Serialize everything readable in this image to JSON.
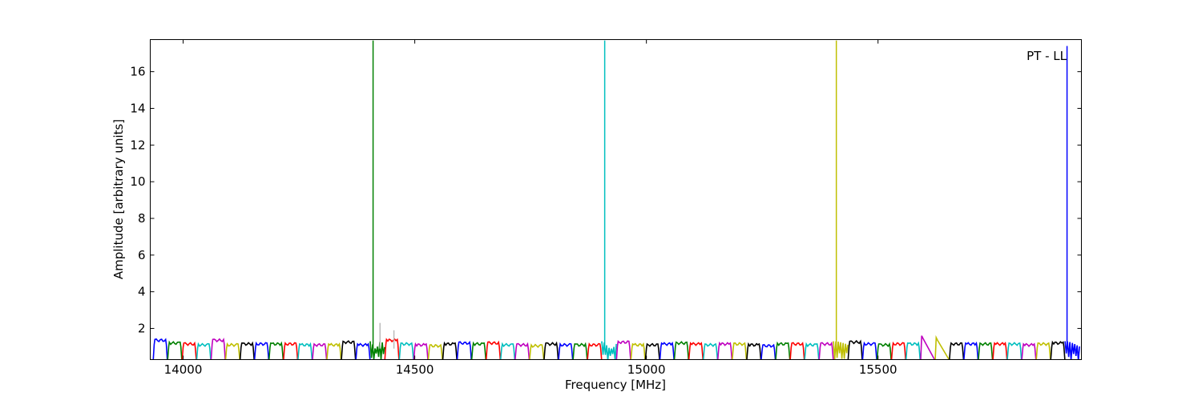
{
  "chart_data": {
    "type": "line",
    "title": "",
    "annotation": "PT - LL",
    "xlabel": "Frequency [MHz]",
    "ylabel": "Amplitude [arbitrary units]",
    "xlim": [
      13929,
      15939
    ],
    "ylim": [
      0.3,
      17.75
    ],
    "xticks": [
      14000,
      14500,
      15000,
      15500
    ],
    "yticks": [
      2,
      4,
      6,
      8,
      10,
      12,
      14,
      16
    ],
    "grid": false,
    "legend": "none",
    "channel_colors": [
      "#0000ff",
      "#008000",
      "#ff0000",
      "#00bfbf",
      "#bf00bf",
      "#bfbf00",
      "#000000"
    ],
    "channels": {
      "first_start_mhz": 13935,
      "width_mhz": 31.25,
      "levels": [
        1.4,
        1.25,
        1.2,
        1.15,
        1.4,
        1.15,
        1.2,
        1.2,
        1.2,
        1.2,
        1.15,
        1.15,
        1.15,
        1.3,
        1.15,
        1.2,
        1.4,
        1.2,
        1.15,
        1.1,
        1.2,
        1.25,
        1.2,
        1.25,
        1.15,
        1.15,
        1.1,
        1.2,
        1.15,
        1.15,
        1.15,
        1.2,
        1.3,
        1.15,
        1.15,
        1.2,
        1.25,
        1.2,
        1.15,
        1.2,
        1.2,
        1.15,
        1.1,
        1.2,
        1.2,
        1.15,
        1.2,
        1.25,
        1.3,
        1.2,
        1.15,
        1.2,
        1.2,
        1.6,
        1.5,
        1.2,
        1.2,
        1.2,
        1.2,
        1.2,
        1.15,
        1.2,
        1.25,
        1.3
      ],
      "noisy_channels": [
        15,
        31,
        47,
        63
      ],
      "ramp_down_channels": [
        53,
        54
      ]
    },
    "spikes": [
      {
        "freq": 14410,
        "amplitude": 17.7,
        "color": "#008000"
      },
      {
        "freq": 14910,
        "amplitude": 17.7,
        "color": "#00bfbf"
      },
      {
        "freq": 15410,
        "amplitude": 17.7,
        "color": "#bfbf00"
      },
      {
        "freq": 15908,
        "amplitude": 17.4,
        "color": "#0000ff"
      },
      {
        "freq": 14425,
        "amplitude": 2.3,
        "color": "#bbbbbb"
      },
      {
        "freq": 14455,
        "amplitude": 1.9,
        "color": "#bbbbbb"
      }
    ]
  }
}
